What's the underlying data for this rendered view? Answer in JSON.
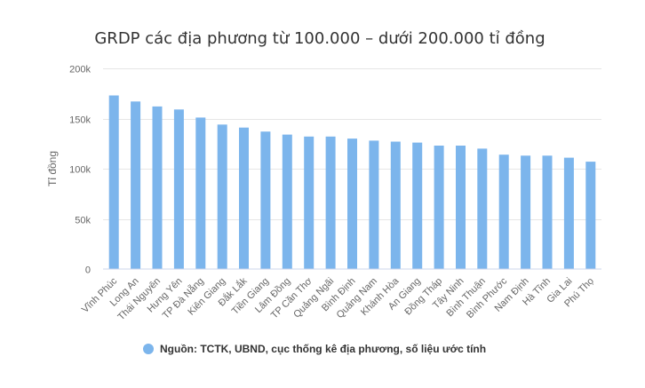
{
  "chart_data": {
    "type": "bar",
    "title": "GRDP các địa phương từ 100.000 – dưới 200.000 tỉ đồng",
    "xlabel": "",
    "ylabel": "Tỉ đồng",
    "ylim": [
      0,
      200000
    ],
    "yticks": [
      0,
      50000,
      100000,
      150000,
      200000
    ],
    "ytick_labels": [
      "0",
      "50k",
      "100k",
      "150k",
      "200k"
    ],
    "grid": true,
    "legend_position": "bottom",
    "categories": [
      "Vĩnh Phúc",
      "Long An",
      "Thái Nguyên",
      "Hưng Yên",
      "TP Đà Nẵng",
      "Kiên Giang",
      "Đắk Lắk",
      "Tiền Giang",
      "Lâm Đồng",
      "TP Cần Thơ",
      "Quảng Ngãi",
      "Bình Định",
      "Quảng Nam",
      "Khánh Hòa",
      "An Giang",
      "Đồng Tháp",
      "Tây Ninh",
      "Bình Thuận",
      "Bình Phước",
      "Nam Định",
      "Hà Tĩnh",
      "Gia Lai",
      "Phú Thọ"
    ],
    "series": [
      {
        "name": "Nguồn: TCTK, UBND, cục thống kê địa phương, số liệu ước tính",
        "color": "#7cb5ec",
        "values": [
          173000,
          167000,
          162000,
          159000,
          151000,
          144000,
          141000,
          137000,
          134000,
          132000,
          132000,
          130000,
          128000,
          127000,
          126000,
          123000,
          123000,
          120000,
          114000,
          113000,
          113000,
          111000,
          107000
        ]
      }
    ]
  }
}
